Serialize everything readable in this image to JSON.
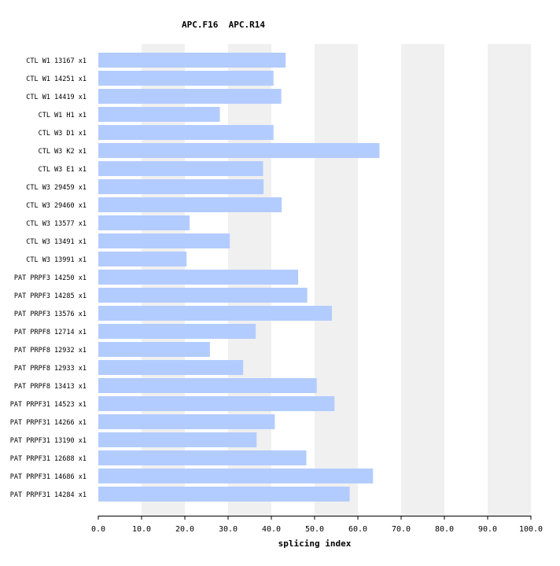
{
  "chart_data": {
    "type": "bar",
    "orientation": "horizontal",
    "title": "APC.F16  APC.R14",
    "xlabel": "splicing index",
    "ylabel": "",
    "xlim": [
      0,
      100
    ],
    "xticks": [
      "0.0",
      "10.0",
      "20.0",
      "30.0",
      "40.0",
      "50.0",
      "60.0",
      "70.0",
      "80.0",
      "90.0",
      "100.0"
    ],
    "grid": "alternating vertical bands",
    "legend": "none",
    "colors": {
      "bar": "#b3ccff",
      "band": "#f0f0f0",
      "axis": "#000000",
      "background": "#ffffff"
    },
    "categories": [
      "CTL W1 13167 x1",
      "CTL W1 14251 x1",
      "CTL W1 14419 x1",
      "CTL W1 H1 x1",
      "CTL W3 D1 x1",
      "CTL W3 K2 x1",
      "CTL W3 E1 x1",
      "CTL W3 29459 x1",
      "CTL W3 29460 x1",
      "CTL W3 13577 x1",
      "CTL W3 13491 x1",
      "CTL W3 13991 x1",
      "PAT PRPF3 14250 x1",
      "PAT PRPF3 14285 x1",
      "PAT PRPF3 13576 x1",
      "PAT PRPF8 12714 x1",
      "PAT PRPF8 12932 x1",
      "PAT PRPF8 12933 x1",
      "PAT PRPF8 13413 x1",
      "PAT PRPF31 14523 x1",
      "PAT PRPF31 14266 x1",
      "PAT PRPF31 13190 x1",
      "PAT PRPF31 12688 x1",
      "PAT PRPF31 14686 x1",
      "PAT PRPF31 14284 x1"
    ],
    "values": [
      43.3,
      40.5,
      42.3,
      28.1,
      40.5,
      65.0,
      38.1,
      38.2,
      42.4,
      21.1,
      30.4,
      20.4,
      46.2,
      48.3,
      54.0,
      36.4,
      25.8,
      33.5,
      50.5,
      54.6,
      40.8,
      36.6,
      48.1,
      63.5,
      58.1
    ]
  }
}
